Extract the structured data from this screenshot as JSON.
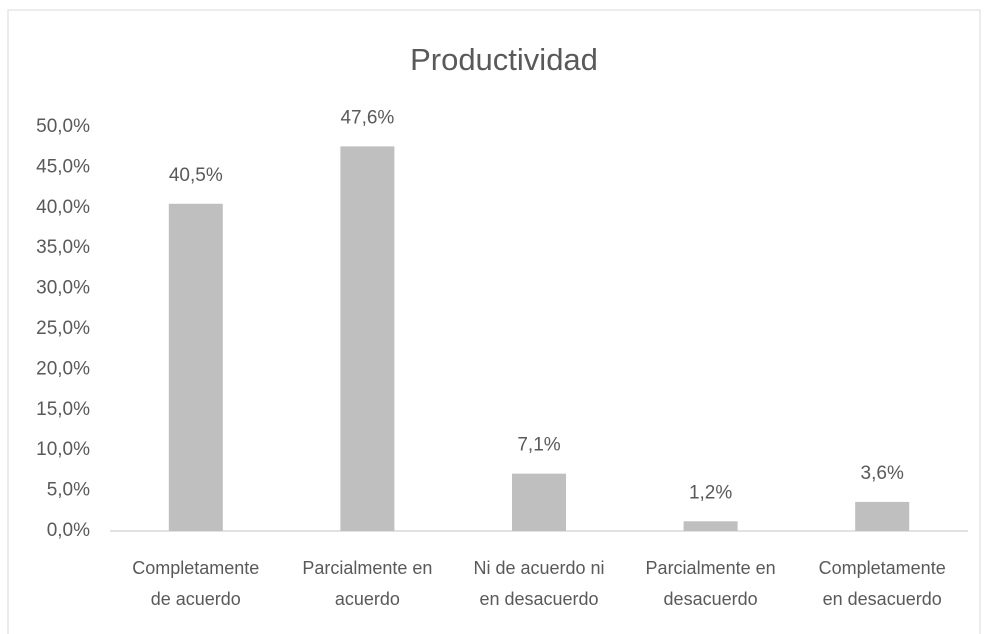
{
  "chart_data": {
    "type": "bar",
    "title": "Productividad",
    "categories": [
      "Completamente de acuerdo",
      "Parcialmente en acuerdo",
      "Ni de acuerdo ni en desacuerdo",
      "Parcialmente en desacuerdo",
      "Completamente en desacuerdo"
    ],
    "values": [
      40.5,
      47.6,
      7.1,
      1.2,
      3.6
    ],
    "value_labels": [
      "40,5%",
      "47,6%",
      "7,1%",
      "1,2%",
      "3,6%"
    ],
    "color": "#bfbfbf",
    "ylim": [
      0,
      50
    ],
    "yticks": [
      {
        "value": 0,
        "label": "0,0%"
      },
      {
        "value": 5,
        "label": "5,0%"
      },
      {
        "value": 10,
        "label": "10,0%"
      },
      {
        "value": 15,
        "label": "15,0%"
      },
      {
        "value": 20,
        "label": "20,0%"
      },
      {
        "value": 25,
        "label": "25,0%"
      },
      {
        "value": 30,
        "label": "30,0%"
      },
      {
        "value": 35,
        "label": "35,0%"
      },
      {
        "value": 40,
        "label": "40,0%"
      },
      {
        "value": 45,
        "label": "45,0%"
      },
      {
        "value": 50,
        "label": "50,0%"
      }
    ]
  }
}
